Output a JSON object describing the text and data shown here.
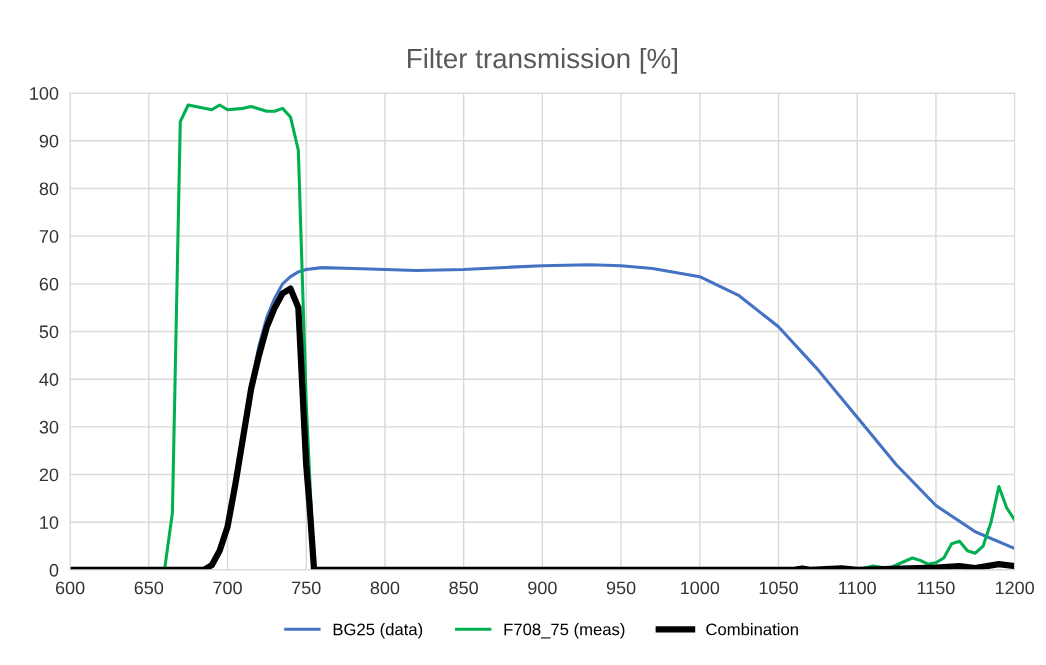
{
  "chart_data": {
    "type": "line",
    "title": "Filter transmission [%]",
    "xlim": [
      600,
      1200
    ],
    "xticks": [
      600,
      650,
      700,
      750,
      800,
      850,
      900,
      950,
      1000,
      1050,
      1100,
      1150,
      1200
    ],
    "ylim": [
      0,
      100
    ],
    "yticks": [
      0,
      10,
      20,
      30,
      40,
      50,
      60,
      70,
      80,
      90,
      100
    ],
    "grid": true,
    "legend": "bottom",
    "marker": "none",
    "line_style": "solid",
    "series": [
      {
        "name": "BG25 (data)",
        "color": "#4472c4",
        "x": [
          710,
          715,
          720,
          725,
          730,
          735,
          740,
          745,
          750,
          760,
          780,
          800,
          820,
          850,
          880,
          900,
          930,
          950,
          970,
          1000,
          1025,
          1050,
          1075,
          1100,
          1125,
          1150,
          1175,
          1200
        ],
        "values": [
          29,
          39,
          47,
          53,
          57,
          60,
          61.5,
          62.5,
          63,
          63.4,
          63.2,
          63,
          62.8,
          63,
          63.5,
          63.8,
          64,
          63.8,
          63.2,
          61.5,
          57.5,
          51,
          42,
          32,
          22,
          13.5,
          8,
          4.5
        ]
      },
      {
        "name": "F708_75 (meas)",
        "color": "#00b050",
        "x": [
          600,
          660,
          665,
          670,
          675,
          690,
          695,
          700,
          710,
          715,
          725,
          730,
          735,
          740,
          745,
          750,
          755,
          1100,
          1110,
          1120,
          1135,
          1140,
          1145,
          1150,
          1155,
          1160,
          1165,
          1170,
          1175,
          1180,
          1185,
          1190,
          1195,
          1200
        ],
        "values": [
          0,
          0,
          12,
          94,
          97.5,
          96.5,
          97.5,
          96.5,
          96.8,
          97.2,
          96.2,
          96.2,
          96.8,
          95,
          88,
          35,
          0,
          0,
          0.8,
          0.3,
          2.5,
          2,
          1.2,
          1.5,
          2.5,
          5.5,
          6,
          4,
          3.5,
          5,
          10,
          17.5,
          13,
          10.5
        ]
      },
      {
        "name": "Combination",
        "color": "#000000",
        "x": [
          600,
          685,
          690,
          695,
          700,
          705,
          710,
          715,
          720,
          725,
          730,
          735,
          740,
          745,
          750,
          752,
          755,
          1060,
          1065,
          1070,
          1090,
          1100,
          1150,
          1165,
          1175,
          1190,
          1200
        ],
        "values": [
          0,
          0,
          1,
          4,
          9,
          18,
          28,
          38,
          45,
          51,
          55,
          58,
          59,
          55,
          22,
          14,
          0,
          0,
          0.3,
          0,
          0.3,
          0,
          0.5,
          0.8,
          0.4,
          1.2,
          0.8
        ]
      }
    ]
  }
}
